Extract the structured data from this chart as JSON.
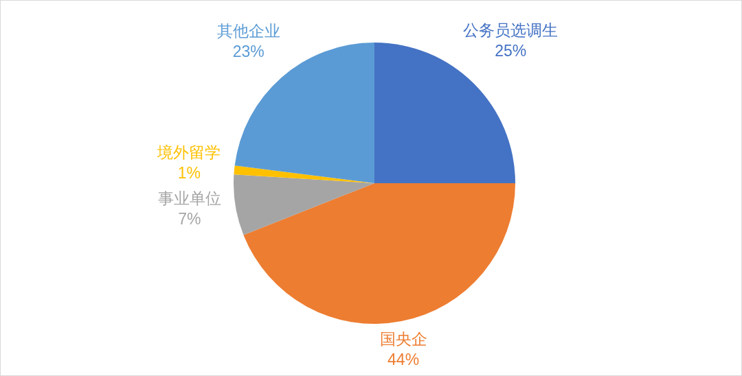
{
  "chart_data": {
    "type": "pie",
    "categories": [
      "公务员选调生",
      "国央企",
      "事业单位",
      "境外留学",
      "其他企业"
    ],
    "values": [
      25,
      44,
      7,
      1,
      23
    ],
    "colors": [
      "#4472c4",
      "#ed7d31",
      "#a5a5a5",
      "#ffc000",
      "#5b9bd5"
    ],
    "value_labels": [
      "25%",
      "44%",
      "7%",
      "1%",
      "23%"
    ]
  }
}
